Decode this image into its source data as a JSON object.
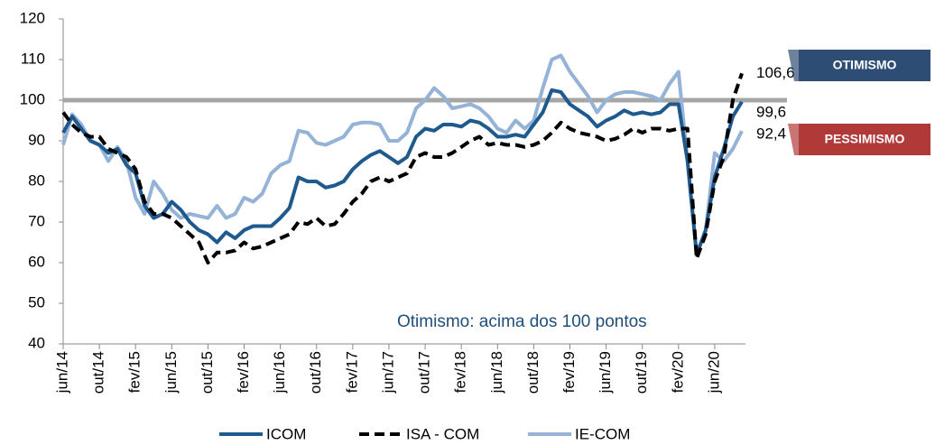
{
  "chart_data": {
    "type": "line",
    "categories": [
      "jun/14",
      null,
      null,
      null,
      "out/14",
      null,
      null,
      null,
      "fev/15",
      null,
      null,
      null,
      "jun/15",
      null,
      null,
      null,
      "out/15",
      null,
      null,
      null,
      "fev/16",
      null,
      null,
      null,
      "jun/16",
      null,
      null,
      null,
      "out/16",
      null,
      null,
      null,
      "fev/17",
      null,
      null,
      null,
      "jun/17",
      null,
      null,
      null,
      "out/17",
      null,
      null,
      null,
      "fev/18",
      null,
      null,
      null,
      "jun/18",
      null,
      null,
      null,
      "out/18",
      null,
      null,
      null,
      "fev/19",
      null,
      null,
      null,
      "jun/19",
      null,
      null,
      null,
      "out/19",
      null,
      null,
      null,
      "fev/20",
      null,
      null,
      null,
      "jun/20",
      null,
      null,
      null
    ],
    "series": [
      {
        "name": "ICOM",
        "color": "#1f5a8e",
        "dash": false,
        "values": [
          92,
          96,
          93,
          90,
          89,
          87,
          88,
          84,
          82,
          74,
          71,
          72,
          75,
          73,
          70,
          68,
          67,
          65,
          67.5,
          66,
          68,
          69,
          69,
          69,
          71,
          73.5,
          81,
          80,
          80,
          78.5,
          79,
          80,
          83,
          85,
          86.5,
          87.5,
          86,
          84.5,
          86,
          91,
          93,
          92.5,
          94,
          94,
          93.5,
          95,
          94.5,
          93,
          91,
          91,
          91.5,
          91,
          94,
          97,
          102.5,
          102,
          99,
          97.5,
          96,
          93.5,
          95,
          96,
          97.5,
          96.5,
          97,
          96.5,
          97,
          99,
          99,
          85,
          62,
          68,
          81,
          88,
          96,
          99.6
        ],
        "value_labels": [
          null,
          null,
          null,
          null,
          null,
          null,
          null,
          null,
          null,
          null,
          null,
          null,
          null,
          null,
          null,
          null,
          null,
          null,
          null,
          null,
          null,
          null,
          null,
          null,
          null,
          null,
          null,
          null,
          null,
          null,
          null,
          null,
          null,
          null,
          null,
          null,
          null,
          null,
          null,
          null,
          null,
          null,
          null,
          null,
          null,
          null,
          null,
          null,
          null,
          null,
          null,
          null,
          null,
          null,
          null,
          null,
          null,
          null,
          null,
          null,
          null,
          null,
          null,
          null,
          null,
          null,
          null,
          null,
          null,
          null,
          null,
          null,
          null,
          null,
          null,
          "99,6"
        ]
      },
      {
        "name": "ISA - COM",
        "color": "#000000",
        "dash": true,
        "values": [
          97,
          94,
          92,
          91,
          91,
          88,
          87,
          86,
          83,
          75,
          72,
          72,
          71,
          69,
          67,
          65,
          60,
          62.5,
          62.5,
          63,
          65,
          63.5,
          64,
          65,
          66,
          67,
          70,
          69.5,
          71,
          69,
          69.5,
          72,
          75,
          77,
          80,
          81,
          80,
          81,
          82,
          86,
          87,
          86,
          86,
          87,
          88.5,
          90,
          91,
          89,
          89.5,
          89,
          89,
          88.5,
          89,
          90,
          92,
          94.5,
          93,
          92,
          91.5,
          91,
          90,
          90.5,
          91.5,
          93,
          92,
          93,
          93,
          92.5,
          93,
          93,
          61,
          67,
          80,
          86,
          100,
          106.6
        ],
        "value_labels": [
          null,
          null,
          null,
          null,
          null,
          null,
          null,
          null,
          null,
          null,
          null,
          null,
          null,
          null,
          null,
          null,
          null,
          null,
          null,
          null,
          null,
          null,
          null,
          null,
          null,
          null,
          null,
          null,
          null,
          null,
          null,
          null,
          null,
          null,
          null,
          null,
          null,
          null,
          null,
          null,
          null,
          null,
          null,
          null,
          null,
          null,
          null,
          null,
          null,
          null,
          null,
          null,
          null,
          null,
          null,
          null,
          null,
          null,
          null,
          null,
          null,
          null,
          null,
          null,
          null,
          null,
          null,
          null,
          null,
          null,
          null,
          null,
          null,
          null,
          null,
          "106,6"
        ]
      },
      {
        "name": "IE-COM",
        "color": "#95b3d7",
        "dash": false,
        "values": [
          89,
          96.5,
          94,
          90,
          89,
          85,
          88.5,
          85,
          76,
          72,
          80,
          77,
          73,
          71,
          72,
          71.5,
          71,
          74,
          71,
          72,
          76,
          75,
          77,
          82,
          84,
          85,
          92.5,
          92,
          89.5,
          89,
          90,
          91,
          94,
          94.5,
          94.5,
          94,
          90,
          90,
          92,
          98,
          100,
          103,
          101,
          98,
          98.5,
          99,
          98,
          96,
          93,
          92,
          95,
          93,
          95,
          103,
          110,
          111,
          107,
          104,
          101,
          97,
          100,
          101.5,
          102,
          102,
          101.5,
          101,
          100,
          104,
          107,
          85,
          62,
          68,
          87,
          85,
          88,
          92.4
        ],
        "value_labels": [
          null,
          null,
          null,
          null,
          null,
          null,
          null,
          null,
          null,
          null,
          null,
          null,
          null,
          null,
          null,
          null,
          null,
          null,
          null,
          null,
          null,
          null,
          null,
          null,
          null,
          null,
          null,
          null,
          null,
          null,
          null,
          null,
          null,
          null,
          null,
          null,
          null,
          null,
          null,
          null,
          null,
          null,
          null,
          null,
          null,
          null,
          null,
          null,
          null,
          null,
          null,
          null,
          null,
          null,
          null,
          null,
          null,
          null,
          null,
          null,
          null,
          null,
          null,
          null,
          null,
          null,
          null,
          null,
          null,
          null,
          null,
          null,
          null,
          null,
          null,
          "92,4"
        ]
      }
    ],
    "ylim": [
      40,
      120
    ],
    "yticks": [
      40,
      50,
      60,
      70,
      80,
      90,
      100,
      110,
      120
    ],
    "reference_line": 100,
    "reference_color": "#a6a6a6",
    "annotation": "Otimismo: acima dos 100 pontos",
    "badges": [
      {
        "text": "OTIMISMO",
        "color": "#2e4d74"
      },
      {
        "text": "PESSIMISMO",
        "color": "#b03a38"
      }
    ],
    "legend": "bottom"
  }
}
